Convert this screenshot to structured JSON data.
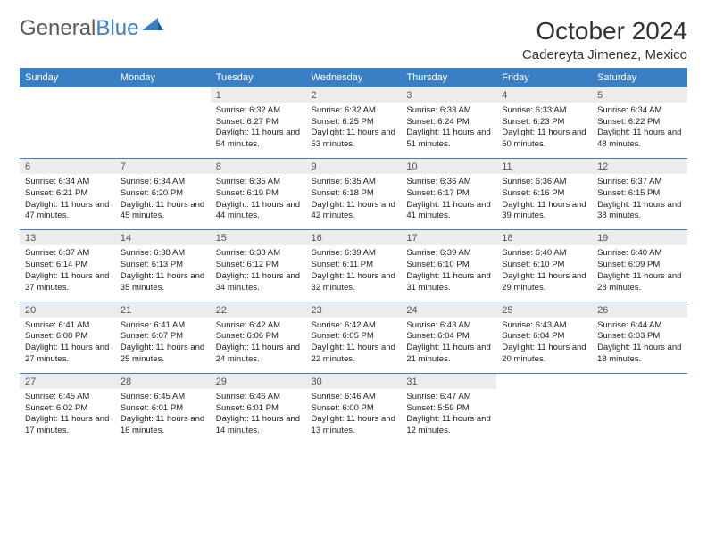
{
  "brand": {
    "part1": "General",
    "part2": "Blue"
  },
  "title": "October 2024",
  "location": "Cadereyta Jimenez, Mexico",
  "colors": {
    "accent": "#3a7fc4",
    "daynum_bg": "#ececec"
  },
  "day_headers": [
    "Sunday",
    "Monday",
    "Tuesday",
    "Wednesday",
    "Thursday",
    "Friday",
    "Saturday"
  ],
  "weeks": [
    {
      "nums": [
        "",
        "",
        "1",
        "2",
        "3",
        "4",
        "5"
      ],
      "cells": [
        null,
        null,
        {
          "sunrise": "Sunrise: 6:32 AM",
          "sunset": "Sunset: 6:27 PM",
          "daylight": "Daylight: 11 hours and 54 minutes."
        },
        {
          "sunrise": "Sunrise: 6:32 AM",
          "sunset": "Sunset: 6:25 PM",
          "daylight": "Daylight: 11 hours and 53 minutes."
        },
        {
          "sunrise": "Sunrise: 6:33 AM",
          "sunset": "Sunset: 6:24 PM",
          "daylight": "Daylight: 11 hours and 51 minutes."
        },
        {
          "sunrise": "Sunrise: 6:33 AM",
          "sunset": "Sunset: 6:23 PM",
          "daylight": "Daylight: 11 hours and 50 minutes."
        },
        {
          "sunrise": "Sunrise: 6:34 AM",
          "sunset": "Sunset: 6:22 PM",
          "daylight": "Daylight: 11 hours and 48 minutes."
        }
      ]
    },
    {
      "nums": [
        "6",
        "7",
        "8",
        "9",
        "10",
        "11",
        "12"
      ],
      "cells": [
        {
          "sunrise": "Sunrise: 6:34 AM",
          "sunset": "Sunset: 6:21 PM",
          "daylight": "Daylight: 11 hours and 47 minutes."
        },
        {
          "sunrise": "Sunrise: 6:34 AM",
          "sunset": "Sunset: 6:20 PM",
          "daylight": "Daylight: 11 hours and 45 minutes."
        },
        {
          "sunrise": "Sunrise: 6:35 AM",
          "sunset": "Sunset: 6:19 PM",
          "daylight": "Daylight: 11 hours and 44 minutes."
        },
        {
          "sunrise": "Sunrise: 6:35 AM",
          "sunset": "Sunset: 6:18 PM",
          "daylight": "Daylight: 11 hours and 42 minutes."
        },
        {
          "sunrise": "Sunrise: 6:36 AM",
          "sunset": "Sunset: 6:17 PM",
          "daylight": "Daylight: 11 hours and 41 minutes."
        },
        {
          "sunrise": "Sunrise: 6:36 AM",
          "sunset": "Sunset: 6:16 PM",
          "daylight": "Daylight: 11 hours and 39 minutes."
        },
        {
          "sunrise": "Sunrise: 6:37 AM",
          "sunset": "Sunset: 6:15 PM",
          "daylight": "Daylight: 11 hours and 38 minutes."
        }
      ]
    },
    {
      "nums": [
        "13",
        "14",
        "15",
        "16",
        "17",
        "18",
        "19"
      ],
      "cells": [
        {
          "sunrise": "Sunrise: 6:37 AM",
          "sunset": "Sunset: 6:14 PM",
          "daylight": "Daylight: 11 hours and 37 minutes."
        },
        {
          "sunrise": "Sunrise: 6:38 AM",
          "sunset": "Sunset: 6:13 PM",
          "daylight": "Daylight: 11 hours and 35 minutes."
        },
        {
          "sunrise": "Sunrise: 6:38 AM",
          "sunset": "Sunset: 6:12 PM",
          "daylight": "Daylight: 11 hours and 34 minutes."
        },
        {
          "sunrise": "Sunrise: 6:39 AM",
          "sunset": "Sunset: 6:11 PM",
          "daylight": "Daylight: 11 hours and 32 minutes."
        },
        {
          "sunrise": "Sunrise: 6:39 AM",
          "sunset": "Sunset: 6:10 PM",
          "daylight": "Daylight: 11 hours and 31 minutes."
        },
        {
          "sunrise": "Sunrise: 6:40 AM",
          "sunset": "Sunset: 6:10 PM",
          "daylight": "Daylight: 11 hours and 29 minutes."
        },
        {
          "sunrise": "Sunrise: 6:40 AM",
          "sunset": "Sunset: 6:09 PM",
          "daylight": "Daylight: 11 hours and 28 minutes."
        }
      ]
    },
    {
      "nums": [
        "20",
        "21",
        "22",
        "23",
        "24",
        "25",
        "26"
      ],
      "cells": [
        {
          "sunrise": "Sunrise: 6:41 AM",
          "sunset": "Sunset: 6:08 PM",
          "daylight": "Daylight: 11 hours and 27 minutes."
        },
        {
          "sunrise": "Sunrise: 6:41 AM",
          "sunset": "Sunset: 6:07 PM",
          "daylight": "Daylight: 11 hours and 25 minutes."
        },
        {
          "sunrise": "Sunrise: 6:42 AM",
          "sunset": "Sunset: 6:06 PM",
          "daylight": "Daylight: 11 hours and 24 minutes."
        },
        {
          "sunrise": "Sunrise: 6:42 AM",
          "sunset": "Sunset: 6:05 PM",
          "daylight": "Daylight: 11 hours and 22 minutes."
        },
        {
          "sunrise": "Sunrise: 6:43 AM",
          "sunset": "Sunset: 6:04 PM",
          "daylight": "Daylight: 11 hours and 21 minutes."
        },
        {
          "sunrise": "Sunrise: 6:43 AM",
          "sunset": "Sunset: 6:04 PM",
          "daylight": "Daylight: 11 hours and 20 minutes."
        },
        {
          "sunrise": "Sunrise: 6:44 AM",
          "sunset": "Sunset: 6:03 PM",
          "daylight": "Daylight: 11 hours and 18 minutes."
        }
      ]
    },
    {
      "nums": [
        "27",
        "28",
        "29",
        "30",
        "31",
        "",
        ""
      ],
      "cells": [
        {
          "sunrise": "Sunrise: 6:45 AM",
          "sunset": "Sunset: 6:02 PM",
          "daylight": "Daylight: 11 hours and 17 minutes."
        },
        {
          "sunrise": "Sunrise: 6:45 AM",
          "sunset": "Sunset: 6:01 PM",
          "daylight": "Daylight: 11 hours and 16 minutes."
        },
        {
          "sunrise": "Sunrise: 6:46 AM",
          "sunset": "Sunset: 6:01 PM",
          "daylight": "Daylight: 11 hours and 14 minutes."
        },
        {
          "sunrise": "Sunrise: 6:46 AM",
          "sunset": "Sunset: 6:00 PM",
          "daylight": "Daylight: 11 hours and 13 minutes."
        },
        {
          "sunrise": "Sunrise: 6:47 AM",
          "sunset": "Sunset: 5:59 PM",
          "daylight": "Daylight: 11 hours and 12 minutes."
        },
        null,
        null
      ]
    }
  ]
}
